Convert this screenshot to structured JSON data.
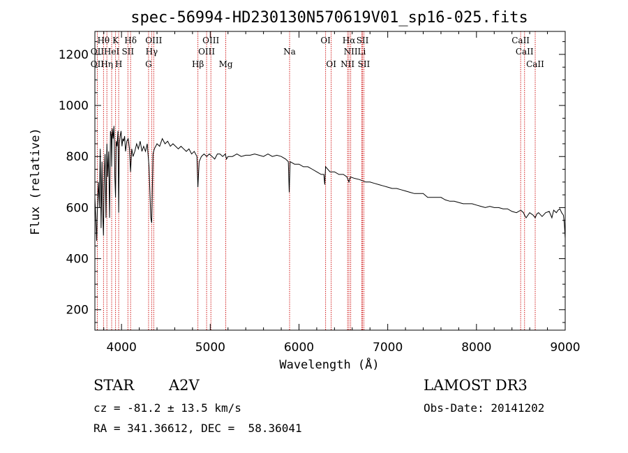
{
  "chart_data": {
    "type": "line",
    "title": "spec-56994-HD230130N570619V01_sp16-025.fits",
    "xlabel": "Wavelength (Å)",
    "ylabel": "Flux (relative)",
    "xlim": [
      3700,
      9000
    ],
    "ylim": [
      120,
      1290
    ],
    "xticks": [
      4000,
      5000,
      6000,
      7000,
      8000,
      9000
    ],
    "yticks": [
      200,
      400,
      600,
      800,
      1000,
      1200
    ],
    "series": [
      {
        "name": "spectrum",
        "x": [
          3700,
          3710,
          3720,
          3730,
          3740,
          3750,
          3760,
          3770,
          3780,
          3790,
          3797,
          3805,
          3815,
          3825,
          3835,
          3845,
          3855,
          3865,
          3875,
          3885,
          3889,
          3895,
          3905,
          3915,
          3925,
          3933,
          3940,
          3950,
          3960,
          3968,
          3975,
          3985,
          3995,
          4005,
          4015,
          4025,
          4035,
          4045,
          4060,
          4075,
          4090,
          4102,
          4115,
          4130,
          4150,
          4170,
          4190,
          4210,
          4230,
          4250,
          4270,
          4290,
          4310,
          4330,
          4340,
          4345,
          4355,
          4370,
          4400,
          4430,
          4460,
          4490,
          4520,
          4550,
          4580,
          4610,
          4640,
          4670,
          4700,
          4730,
          4760,
          4790,
          4820,
          4850,
          4861,
          4875,
          4900,
          4930,
          4960,
          4990,
          5020,
          5050,
          5080,
          5110,
          5140,
          5170,
          5183,
          5200,
          5250,
          5300,
          5350,
          5400,
          5450,
          5500,
          5550,
          5600,
          5650,
          5700,
          5750,
          5800,
          5850,
          5880,
          5890,
          5900,
          5950,
          6000,
          6050,
          6100,
          6150,
          6200,
          6250,
          6280,
          6290,
          6300,
          6350,
          6400,
          6450,
          6500,
          6540,
          6563,
          6580,
          6620,
          6680,
          6750,
          6800,
          6850,
          6900,
          6950,
          7000,
          7050,
          7100,
          7150,
          7200,
          7250,
          7300,
          7350,
          7400,
          7450,
          7500,
          7550,
          7600,
          7650,
          7700,
          7750,
          7800,
          7850,
          7900,
          7950,
          8000,
          8050,
          8100,
          8150,
          8200,
          8250,
          8300,
          8350,
          8400,
          8450,
          8500,
          8530,
          8542,
          8560,
          8600,
          8640,
          8662,
          8680,
          8700,
          8740,
          8780,
          8820,
          8850,
          8870,
          8900,
          8920,
          8940,
          8960,
          8980,
          8990,
          9000
        ],
        "y": [
          640,
          560,
          470,
          620,
          700,
          600,
          830,
          520,
          780,
          560,
          490,
          730,
          810,
          560,
          850,
          720,
          820,
          560,
          900,
          880,
          760,
          910,
          870,
          920,
          720,
          640,
          860,
          840,
          900,
          580,
          850,
          880,
          900,
          840,
          870,
          860,
          880,
          820,
          860,
          870,
          830,
          740,
          830,
          800,
          820,
          850,
          830,
          860,
          820,
          840,
          820,
          850,
          760,
          560,
          540,
          620,
          810,
          830,
          850,
          840,
          870,
          850,
          860,
          840,
          850,
          840,
          830,
          840,
          830,
          820,
          830,
          810,
          820,
          800,
          680,
          780,
          800,
          810,
          800,
          810,
          800,
          790,
          810,
          810,
          800,
          810,
          790,
          800,
          800,
          810,
          800,
          805,
          805,
          810,
          805,
          800,
          810,
          800,
          805,
          800,
          790,
          780,
          660,
          780,
          770,
          770,
          760,
          760,
          750,
          740,
          730,
          730,
          690,
          760,
          740,
          740,
          730,
          730,
          720,
          700,
          720,
          715,
          710,
          700,
          700,
          695,
          690,
          685,
          680,
          675,
          675,
          670,
          665,
          660,
          655,
          655,
          655,
          640,
          640,
          640,
          640,
          630,
          625,
          625,
          620,
          615,
          615,
          615,
          610,
          605,
          600,
          605,
          600,
          600,
          595,
          595,
          585,
          580,
          590,
          580,
          570,
          560,
          580,
          570,
          560,
          575,
          580,
          565,
          580,
          585,
          560,
          590,
          580,
          590,
          595,
          580,
          570,
          540,
          480
        ]
      }
    ],
    "reference_lines": [
      {
        "name": "OII",
        "wavelength": 3727
      },
      {
        "name": "Hθ",
        "wavelength": 3797
      },
      {
        "name": "Hη",
        "wavelength": 3835
      },
      {
        "name": "HeI",
        "wavelength": 3889
      },
      {
        "name": "K",
        "wavelength": 3933
      },
      {
        "name": "H",
        "wavelength": 3968
      },
      {
        "name": "SII",
        "wavelength": 4072
      },
      {
        "name": "Hδ",
        "wavelength": 4102
      },
      {
        "name": "G",
        "wavelength": 4305
      },
      {
        "name": "Hγ",
        "wavelength": 4340
      },
      {
        "name": "OIII",
        "wavelength": 4363
      },
      {
        "name": "Hβ",
        "wavelength": 4861
      },
      {
        "name": "OIII",
        "wavelength": 4959
      },
      {
        "name": "OIII",
        "wavelength": 5007
      },
      {
        "name": "Mg",
        "wavelength": 5175
      },
      {
        "name": "Na",
        "wavelength": 5894
      },
      {
        "name": "OI",
        "wavelength": 6300
      },
      {
        "name": "OI",
        "wavelength": 6363
      },
      {
        "name": "NII",
        "wavelength": 6548
      },
      {
        "name": "Hα",
        "wavelength": 6563
      },
      {
        "name": "NII",
        "wavelength": 6583
      },
      {
        "name": "Li",
        "wavelength": 6707
      },
      {
        "name": "SII",
        "wavelength": 6716
      },
      {
        "name": "SII",
        "wavelength": 6731
      },
      {
        "name": "CaII",
        "wavelength": 8498
      },
      {
        "name": "CaII",
        "wavelength": 8542
      },
      {
        "name": "CaII",
        "wavelength": 8662
      }
    ],
    "line_labels": [
      {
        "text": "Hθ",
        "wavelength": 3797,
        "row": 1
      },
      {
        "text": "K",
        "wavelength": 3933,
        "row": 1
      },
      {
        "text": "Hδ",
        "wavelength": 4102,
        "row": 1
      },
      {
        "text": "OIII",
        "wavelength": 4363,
        "row": 1
      },
      {
        "text": "OIII",
        "wavelength": 5007,
        "row": 1
      },
      {
        "text": "OI",
        "wavelength": 6300,
        "row": 1
      },
      {
        "text": "Hα",
        "wavelength": 6563,
        "row": 1
      },
      {
        "text": "SII",
        "wavelength": 6716,
        "row": 1
      },
      {
        "text": "CaII",
        "wavelength": 8498,
        "row": 1
      },
      {
        "text": "OII",
        "wavelength": 3727,
        "row": 2
      },
      {
        "text": "HeI",
        "wavelength": 3889,
        "row": 2
      },
      {
        "text": "SII",
        "wavelength": 4072,
        "row": 2
      },
      {
        "text": "Hγ",
        "wavelength": 4340,
        "row": 2
      },
      {
        "text": "OIII",
        "wavelength": 4959,
        "row": 2
      },
      {
        "text": "Na",
        "wavelength": 5894,
        "row": 2
      },
      {
        "text": "NII",
        "wavelength": 6583,
        "row": 2
      },
      {
        "text": "Li",
        "wavelength": 6707,
        "row": 2
      },
      {
        "text": "CaII",
        "wavelength": 8542,
        "row": 2
      },
      {
        "text": "OII",
        "wavelength": 3727,
        "row": 3
      },
      {
        "text": "Hη",
        "wavelength": 3835,
        "row": 3
      },
      {
        "text": "H",
        "wavelength": 3968,
        "row": 3
      },
      {
        "text": "G",
        "wavelength": 4305,
        "row": 3
      },
      {
        "text": "Hβ",
        "wavelength": 4861,
        "row": 3
      },
      {
        "text": "Mg",
        "wavelength": 5175,
        "row": 3
      },
      {
        "text": "OI",
        "wavelength": 6363,
        "row": 3
      },
      {
        "text": "NII",
        "wavelength": 6548,
        "row": 3
      },
      {
        "text": "SII",
        "wavelength": 6731,
        "row": 3
      },
      {
        "text": "CaII",
        "wavelength": 8662,
        "row": 3
      }
    ]
  },
  "info": {
    "class_label": "STAR",
    "subclass": "A2V",
    "survey": "LAMOST DR3",
    "cz": "cz = -81.2 ± 13.5 km/s",
    "obs_date": "Obs-Date: 20141202",
    "coords": "RA = 341.36612, DEC =  58.36041"
  },
  "colors": {
    "spectrum": "#000000",
    "reference_line": "#cc0000",
    "axes": "#000000"
  }
}
